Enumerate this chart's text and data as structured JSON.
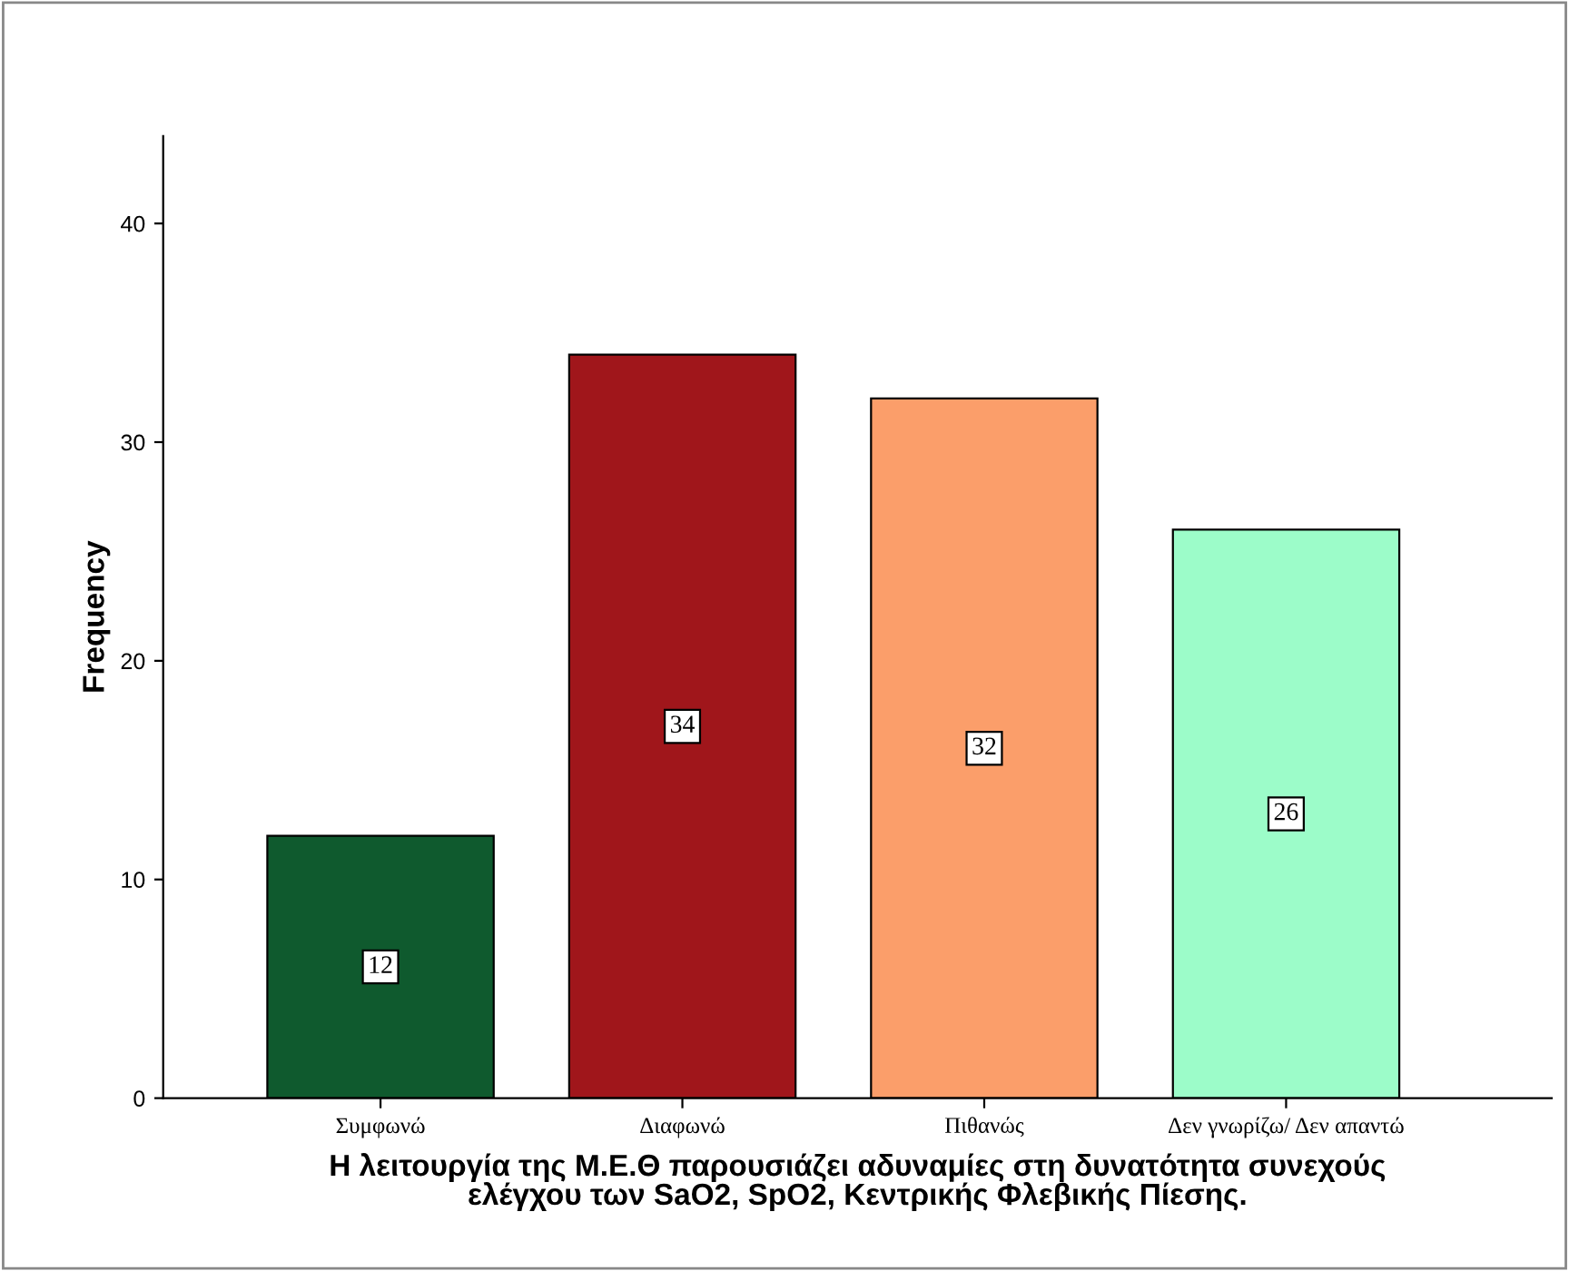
{
  "chart_data": {
    "type": "bar",
    "categories": [
      "Συμφωνώ",
      "Διαφωνώ",
      "Πιθανώς",
      "Δεν γνωρίζω/ Δεν απαντώ"
    ],
    "values": [
      12,
      34,
      32,
      26
    ],
    "colors": [
      "#0f5a2e",
      "#a0161b",
      "#fb9e6a",
      "#9cfcc9"
    ],
    "xlabel": "Η λειτουργία της Μ.Ε.Θ παρουσιάζει αδυναμίες στη δυνατότητα συνεχούς\nελέγχου των SaO2, SpO2, Κεντρικής Φλεβικής Πίεσης.",
    "ylabel": "Frequency",
    "ylim": [
      0,
      44
    ],
    "yticks": [
      0,
      10,
      20,
      30,
      40
    ],
    "data_labels": true,
    "grid": false
  }
}
